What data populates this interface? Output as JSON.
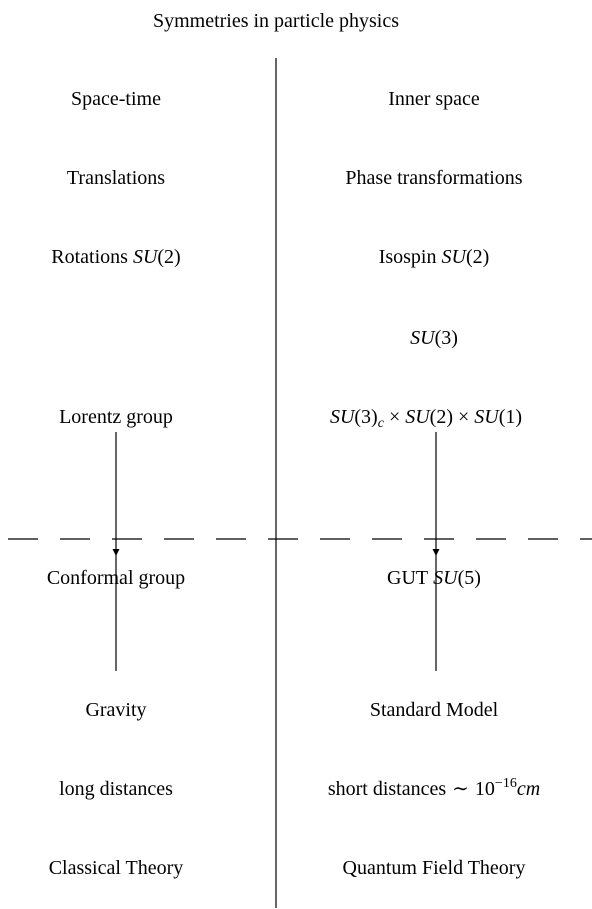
{
  "title": "Symmetries in particle physics",
  "left": {
    "space_time": "Space-time",
    "translations": "Translations",
    "rotations": [
      "Rotations",
      "SU",
      "(2)"
    ],
    "lorentz": "Lorentz group",
    "conformal": "Conformal group",
    "gravity": "Gravity",
    "distances": "long distances",
    "theory": "Classical Theory"
  },
  "right": {
    "inner_space": "Inner space",
    "phase": "Phase transformations",
    "isospin": [
      "Isospin",
      "SU",
      "(2)"
    ],
    "su3": [
      "SU",
      "(3)"
    ],
    "standard_group": [
      "SU",
      "(3)",
      "c",
      "×",
      "SU",
      "(2)",
      "×",
      "SU",
      "(1)"
    ],
    "gut": [
      "GUT",
      "SU",
      "(5)"
    ],
    "model": "Standard Model",
    "distances": [
      "short distances",
      "∼",
      "10",
      "−16",
      "cm"
    ],
    "theory": "Quantum Field Theory"
  }
}
